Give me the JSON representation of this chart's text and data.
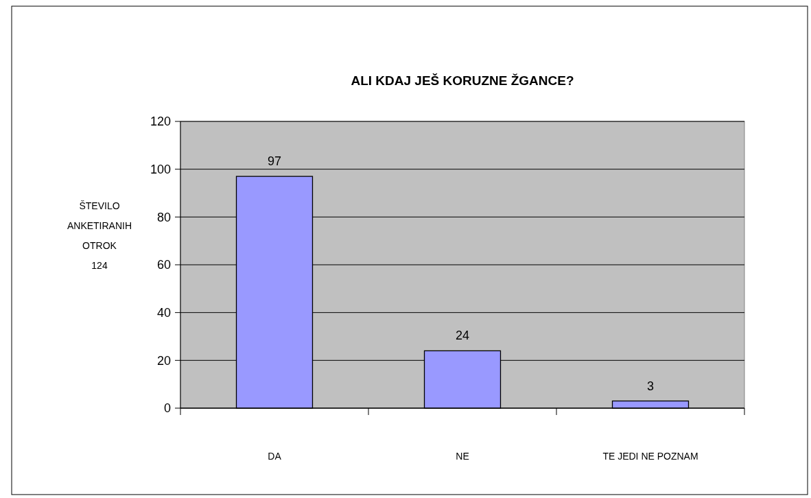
{
  "chart_data": {
    "type": "bar",
    "title": "ALI KDAJ JEŠ KORUZNE ŽGANCE?",
    "ylabel": "ŠTEVILO ANKETIRANIH OTROK 124",
    "categories": [
      "DA",
      "NE",
      "TE JEDI NE POZNAM"
    ],
    "values": [
      97,
      24,
      3
    ],
    "color": "#9999ff",
    "ylim": [
      0,
      120
    ],
    "yticks": [
      0,
      20,
      40,
      60,
      80,
      100,
      120
    ],
    "grid": "y",
    "data_labels": true
  }
}
